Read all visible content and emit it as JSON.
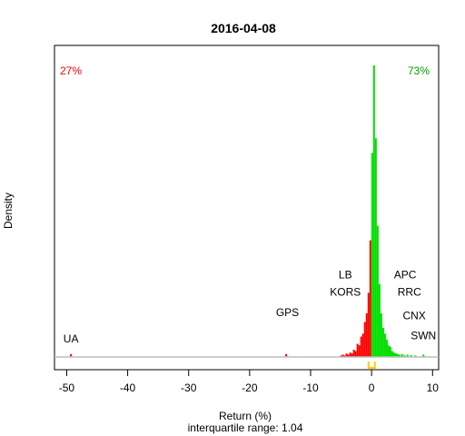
{
  "chart_data": {
    "type": "histogram",
    "title": "2016-04-08",
    "xlabel": "Return (%)",
    "ylabel": "Density",
    "subtitle": "interquartile range: 1.04",
    "xlim": [
      -52,
      11
    ],
    "xticks": [
      -50,
      -40,
      -30,
      -20,
      -10,
      0,
      10
    ],
    "grid": false,
    "neg_share_label": "27%",
    "pos_share_label": "73%",
    "neg_color": "#ff0000",
    "pos_color": "#00e000",
    "baseline_color": "#bebebe",
    "quartile_color": "#ffcc00",
    "quartile_marks": [
      -0.5,
      0.54
    ],
    "bins": [
      {
        "x": -49.3,
        "h": 0.01
      },
      {
        "x": -14.0,
        "h": 0.01
      },
      {
        "x": -5.0,
        "h": 0.005
      },
      {
        "x": -4.7,
        "h": 0.008
      },
      {
        "x": -4.4,
        "h": 0.005
      },
      {
        "x": -4.1,
        "h": 0.012
      },
      {
        "x": -3.8,
        "h": 0.008
      },
      {
        "x": -3.5,
        "h": 0.015
      },
      {
        "x": -3.2,
        "h": 0.012
      },
      {
        "x": -2.9,
        "h": 0.025
      },
      {
        "x": -2.6,
        "h": 0.02
      },
      {
        "x": -2.3,
        "h": 0.045
      },
      {
        "x": -2.0,
        "h": 0.04
      },
      {
        "x": -1.7,
        "h": 0.07
      },
      {
        "x": -1.4,
        "h": 0.08
      },
      {
        "x": -1.1,
        "h": 0.12
      },
      {
        "x": -0.8,
        "h": 0.15
      },
      {
        "x": -0.5,
        "h": 0.22
      },
      {
        "x": -0.2,
        "h": 0.4
      },
      {
        "x": 0.1,
        "h": 0.7
      },
      {
        "x": 0.4,
        "h": 1.0
      },
      {
        "x": 0.7,
        "h": 0.75
      },
      {
        "x": 1.0,
        "h": 0.45
      },
      {
        "x": 1.3,
        "h": 0.25
      },
      {
        "x": 1.6,
        "h": 0.15
      },
      {
        "x": 1.9,
        "h": 0.1
      },
      {
        "x": 2.2,
        "h": 0.08
      },
      {
        "x": 2.5,
        "h": 0.06
      },
      {
        "x": 2.8,
        "h": 0.04
      },
      {
        "x": 3.1,
        "h": 0.035
      },
      {
        "x": 3.4,
        "h": 0.02
      },
      {
        "x": 3.7,
        "h": 0.015
      },
      {
        "x": 4.0,
        "h": 0.012
      },
      {
        "x": 4.3,
        "h": 0.01
      },
      {
        "x": 4.6,
        "h": 0.008
      },
      {
        "x": 5.0,
        "h": 0.01
      },
      {
        "x": 5.4,
        "h": 0.006
      },
      {
        "x": 5.9,
        "h": 0.008
      },
      {
        "x": 6.5,
        "h": 0.006
      },
      {
        "x": 7.2,
        "h": 0.005
      },
      {
        "x": 8.5,
        "h": 0.008
      }
    ],
    "annotations": [
      {
        "text": "UA",
        "x": -49.3,
        "h": 0.05
      },
      {
        "text": "GPS",
        "x": -13.8,
        "h": 0.14
      },
      {
        "text": "LB",
        "x": -4.3,
        "h": 0.27
      },
      {
        "text": "KORS",
        "x": -4.3,
        "h": 0.21
      },
      {
        "text": "APC",
        "x": 5.5,
        "h": 0.27
      },
      {
        "text": "RRC",
        "x": 6.2,
        "h": 0.21
      },
      {
        "text": "CNX",
        "x": 7.0,
        "h": 0.13
      },
      {
        "text": "SWN",
        "x": 8.5,
        "h": 0.06
      }
    ]
  }
}
